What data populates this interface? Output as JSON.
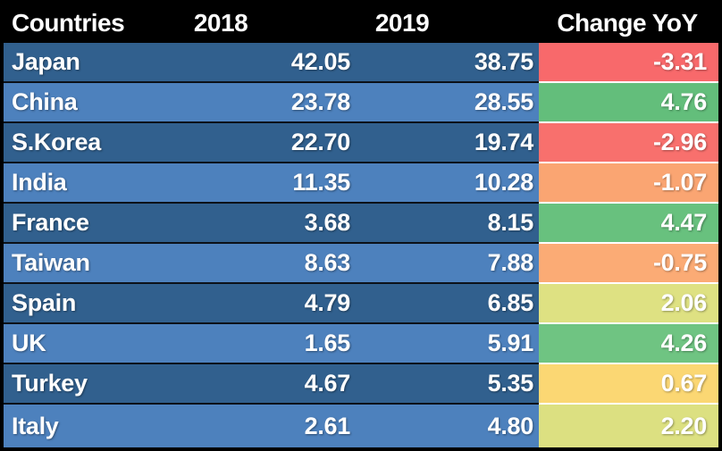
{
  "table": {
    "columns": [
      "Countries",
      "2018",
      "2019",
      "Change YoY"
    ],
    "rows": [
      {
        "country": "Japan",
        "y2018": "42.05",
        "y2019": "38.75",
        "change": "-3.31",
        "row_color": "#31608E",
        "change_color": "#F8696B"
      },
      {
        "country": "China",
        "y2018": "23.78",
        "y2019": "28.55",
        "change": "4.76",
        "row_color": "#4D81BD",
        "change_color": "#63BE7B"
      },
      {
        "country": "S.Korea",
        "y2018": "22.70",
        "y2019": "19.74",
        "change": "-2.96",
        "row_color": "#31608E",
        "change_color": "#F8706D"
      },
      {
        "country": "India",
        "y2018": "11.35",
        "y2019": "10.28",
        "change": "-1.07",
        "row_color": "#4D81BD",
        "change_color": "#FAA572"
      },
      {
        "country": "France",
        "y2018": "3.68",
        "y2019": "8.15",
        "change": "4.47",
        "row_color": "#31608E",
        "change_color": "#68C17E"
      },
      {
        "country": "Taiwan",
        "y2018": "8.63",
        "y2019": "7.88",
        "change": "-0.75",
        "row_color": "#4D81BD",
        "change_color": "#FBAB75"
      },
      {
        "country": "Spain",
        "y2018": "4.79",
        "y2019": "6.85",
        "change": "2.06",
        "row_color": "#31608E",
        "change_color": "#DEE182"
      },
      {
        "country": "UK",
        "y2018": "1.65",
        "y2019": "5.91",
        "change": "4.26",
        "row_color": "#4D81BD",
        "change_color": "#6FC482"
      },
      {
        "country": "Turkey",
        "y2018": "4.67",
        "y2019": "5.35",
        "change": "0.67",
        "row_color": "#31608E",
        "change_color": "#FBD773"
      },
      {
        "country": "Italy",
        "y2018": "2.61",
        "y2019": "4.80",
        "change": "2.20",
        "row_color": "#4D81BD",
        "change_color": "#DCE081"
      }
    ],
    "colors": {
      "header_bg": "#000000",
      "header_text": "#FFFFFF",
      "row_text": "#FFFFFF",
      "dark_row_blue": "#31608E",
      "light_row_blue": "#4D81BD",
      "outer_border": "#000000",
      "blue_row_separator": "#0C1118",
      "change_cell_separator": "#FFFFFF",
      "scale_negative": "#F8696B",
      "scale_mid": "#FFEB84",
      "scale_positive": "#63BE7B"
    }
  },
  "chart_data": {
    "type": "table",
    "title": "",
    "columns": [
      "Countries",
      "2018",
      "2019",
      "Change YoY"
    ],
    "rows": [
      [
        "Japan",
        42.05,
        38.75,
        -3.31
      ],
      [
        "China",
        23.78,
        28.55,
        4.76
      ],
      [
        "S.Korea",
        22.7,
        19.74,
        -2.96
      ],
      [
        "India",
        11.35,
        10.28,
        -1.07
      ],
      [
        "France",
        3.68,
        8.15,
        4.47
      ],
      [
        "Taiwan",
        8.63,
        7.88,
        -0.75
      ],
      [
        "Spain",
        4.79,
        6.85,
        2.06
      ],
      [
        "UK",
        1.65,
        5.91,
        4.26
      ],
      [
        "Turkey",
        4.67,
        5.35,
        0.67
      ],
      [
        "Italy",
        2.61,
        4.8,
        2.2
      ]
    ],
    "layout_hints": {
      "change_yoy_formatting": "red-yellow-green conditional color scale (red = most negative, green = most positive)",
      "row_striping": "alternating dark blue / light blue starting dark"
    }
  }
}
